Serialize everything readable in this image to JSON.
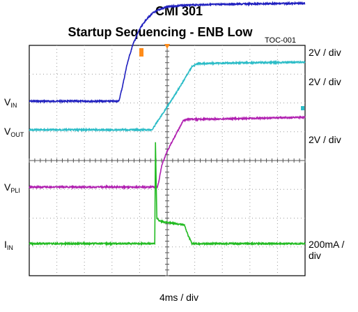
{
  "title": "CMI 301",
  "subtitle": "Startup Sequencing - ENB Low",
  "code": "TOC-001",
  "timebase": "4ms / div",
  "chart_data": {
    "type": "line",
    "title": "CMI 301",
    "subtitle": "Startup Sequencing - ENB Low",
    "xlabel": "4ms / div",
    "x_divisions": 10,
    "y_divisions": 8,
    "grid": true,
    "time_unit": "ms",
    "series": [
      {
        "name": "VIN",
        "label_main": "V",
        "label_sub": "IN",
        "scale": "2V / div",
        "color": "#1f1fbf",
        "x": [
          0,
          13.0,
          13.6,
          14.2,
          15.0,
          16.0,
          17.0,
          18.0,
          19.0,
          20.0,
          22.0,
          25.0,
          30.0,
          40.0
        ],
        "y": [
          0.0,
          0.0,
          1.2,
          2.6,
          3.9,
          5.0,
          5.7,
          6.15,
          6.4,
          6.55,
          6.65,
          6.7,
          6.75,
          6.8
        ]
      },
      {
        "name": "VOUT",
        "label_main": "V",
        "label_sub": "OUT",
        "scale": "2V / div",
        "color": "#2bbcc7",
        "x": [
          0,
          17.8,
          20.0,
          22.0,
          23.6,
          24.4,
          30.0,
          40.0
        ],
        "y": [
          0.0,
          0.0,
          1.6,
          3.1,
          4.4,
          4.6,
          4.65,
          4.7
        ]
      },
      {
        "name": "VPLI",
        "label_main": "V",
        "label_sub": "PLI",
        "scale": "2V / div",
        "color": "#b01fb0",
        "x": [
          0,
          18.6,
          18.8,
          19.2,
          20.0,
          21.0,
          22.3,
          23.0,
          30.0,
          40.0
        ],
        "y": [
          0.0,
          0.0,
          0.4,
          1.5,
          2.5,
          3.4,
          4.6,
          4.7,
          4.75,
          4.85
        ]
      },
      {
        "name": "IIN",
        "label_main": "I",
        "label_sub": "IN",
        "scale": "200mA / div",
        "color": "#22bb22",
        "x": [
          0,
          18.2,
          18.3,
          18.5,
          18.8,
          19.5,
          21.0,
          22.5,
          23.0,
          23.6,
          40.0
        ],
        "y": [
          0,
          0,
          700,
          180,
          160,
          150,
          140,
          130,
          60,
          0,
          0
        ]
      }
    ],
    "markers": [
      {
        "name": "trigger",
        "x": 20.0,
        "color": "#ff8c1a"
      }
    ]
  }
}
